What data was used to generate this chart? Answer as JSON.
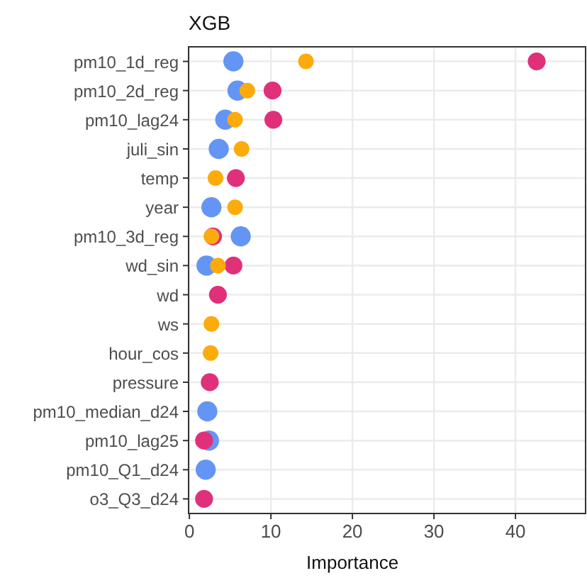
{
  "chart_data": {
    "type": "scatter",
    "title": "XGB",
    "xlabel": "Importance",
    "categories": [
      "pm10_1d_reg",
      "pm10_2d_reg",
      "pm10_lag24",
      "juli_sin",
      "temp",
      "year",
      "pm10_3d_reg",
      "wd_sin",
      "wd",
      "ws",
      "hour_cos",
      "pressure",
      "pm10_median_d24",
      "pm10_lag25",
      "pm10_Q1_d24",
      "o3_Q3_d24"
    ],
    "orientation": "horizontal",
    "xlim": [
      -0.1,
      48.6
    ],
    "xticks": [
      0,
      10,
      20,
      30,
      40
    ],
    "grid": true,
    "marker": "circle",
    "series": [
      {
        "color": "#6495f5",
        "values": [
          5.4,
          5.9,
          4.4,
          3.6,
          null,
          2.7,
          6.3,
          2.1,
          null,
          null,
          null,
          null,
          2.2,
          2.4,
          2.0,
          null
        ]
      },
      {
        "color": "#e0307a",
        "values": [
          42.6,
          10.2,
          10.3,
          null,
          5.7,
          null,
          2.9,
          5.4,
          3.5,
          null,
          null,
          2.5,
          null,
          1.8,
          null,
          1.8
        ]
      },
      {
        "color": "#fbab0c",
        "values": [
          14.3,
          7.1,
          5.6,
          6.4,
          3.2,
          5.6,
          2.7,
          3.5,
          null,
          2.7,
          2.6,
          null,
          null,
          null,
          null,
          null
        ]
      }
    ]
  }
}
